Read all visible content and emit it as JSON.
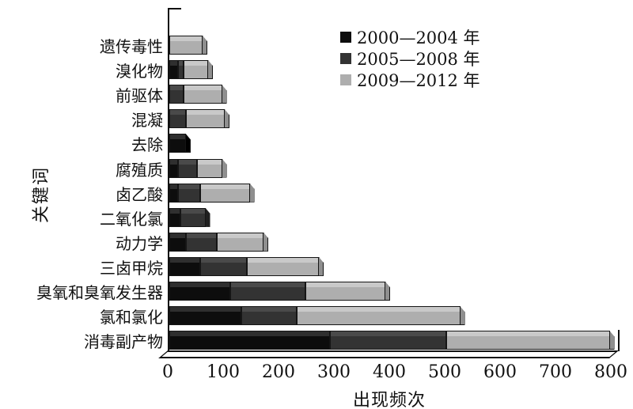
{
  "chart_data": {
    "type": "bar",
    "orientation": "horizontal",
    "stacked": true,
    "grid": false,
    "legend_position": "top-right",
    "xlabel": "出现频次",
    "ylabel": "关键词",
    "xlim": [
      0,
      800
    ],
    "x_ticks": [
      "0",
      "100",
      "200",
      "300",
      "400",
      "500",
      "600",
      "700",
      "800"
    ],
    "categories_top_to_bottom": [
      "遗传毒性",
      "溴化物",
      "前驱体",
      "混凝",
      "去除",
      "腐殖质",
      "卤乙酸",
      "二氧化氯",
      "动力学",
      "三卤甲烷",
      "臭氧和臭氧发生器",
      "氯和氯化",
      "消毒副产物"
    ],
    "series": [
      {
        "name": "2000—2004 年",
        "color": "#0d0d0d",
        "color_top": "#2f2f2f",
        "color_cap": "#000000",
        "values": [
          0,
          15,
          0,
          0,
          30,
          15,
          15,
          20,
          30,
          55,
          110,
          130,
          290
        ]
      },
      {
        "name": "2005—2008 年",
        "color": "#333333",
        "color_top": "#4a4a4a",
        "color_cap": "#202020",
        "values": [
          0,
          10,
          25,
          30,
          0,
          35,
          40,
          45,
          55,
          85,
          135,
          100,
          210
        ]
      },
      {
        "name": "2009—2012 年",
        "color": "#aeaeae",
        "color_top": "#c9c9c9",
        "color_cap": "#8f8f8f",
        "values": [
          60,
          45,
          70,
          70,
          0,
          45,
          90,
          0,
          85,
          130,
          145,
          295,
          295
        ]
      }
    ],
    "totals": [
      60,
      70,
      95,
      100,
      30,
      95,
      145,
      65,
      170,
      270,
      390,
      525,
      795
    ]
  }
}
